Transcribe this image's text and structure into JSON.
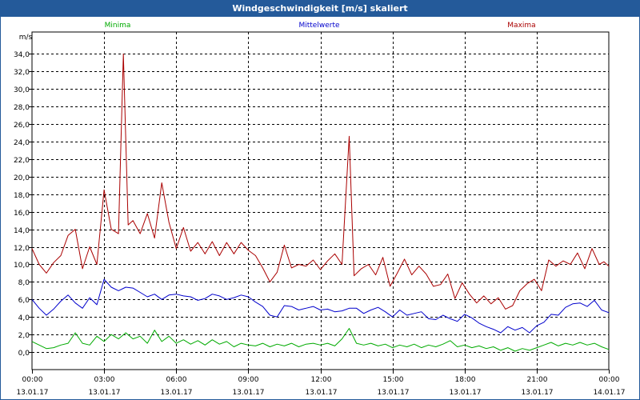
{
  "window": {
    "title": "Windgeschwindigkeit [m/s] skaliert"
  },
  "chart_data": {
    "type": "line",
    "title": "Windgeschwindigkeit [m/s] skaliert",
    "ylabel": "m/s",
    "xlabel": "",
    "ylim": [
      -2,
      36.5
    ],
    "yticks": [
      0,
      2,
      4,
      6,
      8,
      10,
      12,
      14,
      16,
      18,
      20,
      22,
      24,
      26,
      28,
      30,
      32,
      34
    ],
    "ytick_labels": [
      "0,0",
      "2,0",
      "4,0",
      "6,0",
      "8,0",
      "10,0",
      "12,0",
      "14,0",
      "16,0",
      "18,0",
      "20,0",
      "22,0",
      "24,0",
      "26,0",
      "28,0",
      "30,0",
      "32,0",
      "34,0"
    ],
    "xlim": [
      0,
      24
    ],
    "xticks": [
      0,
      3,
      6,
      9,
      12,
      15,
      18,
      21,
      24
    ],
    "xtick_time_labels": [
      "00:00",
      "03:00",
      "06:00",
      "09:00",
      "12:00",
      "15:00",
      "18:00",
      "21:00",
      "00:00"
    ],
    "xtick_date_labels": [
      "13.01.17",
      "13.01.17",
      "13.01.17",
      "13.01.17",
      "13.01.17",
      "13.01.17",
      "13.01.17",
      "13.01.17",
      "14.01.17"
    ],
    "grid": true,
    "legend_position": "top",
    "series": [
      {
        "name": "Minima",
        "color": "#00aa00",
        "points": [
          [
            0,
            1.2
          ],
          [
            0.3,
            0.8
          ],
          [
            0.6,
            0.4
          ],
          [
            0.9,
            0.5
          ],
          [
            1.2,
            0.8
          ],
          [
            1.5,
            1.0
          ],
          [
            1.8,
            2.2
          ],
          [
            2.1,
            1.0
          ],
          [
            2.4,
            0.8
          ],
          [
            2.7,
            1.8
          ],
          [
            3.0,
            1.2
          ],
          [
            3.3,
            2.0
          ],
          [
            3.6,
            1.5
          ],
          [
            3.9,
            2.2
          ],
          [
            4.2,
            1.5
          ],
          [
            4.5,
            1.8
          ],
          [
            4.8,
            1.0
          ],
          [
            5.1,
            2.5
          ],
          [
            5.4,
            1.2
          ],
          [
            5.7,
            1.8
          ],
          [
            6.0,
            1.0
          ],
          [
            6.3,
            1.4
          ],
          [
            6.6,
            0.9
          ],
          [
            6.9,
            1.3
          ],
          [
            7.2,
            0.8
          ],
          [
            7.5,
            1.4
          ],
          [
            7.8,
            0.9
          ],
          [
            8.1,
            1.2
          ],
          [
            8.4,
            0.6
          ],
          [
            8.7,
            1.0
          ],
          [
            9.0,
            0.8
          ],
          [
            9.3,
            0.7
          ],
          [
            9.6,
            1.0
          ],
          [
            9.9,
            0.6
          ],
          [
            10.2,
            0.9
          ],
          [
            10.5,
            0.7
          ],
          [
            10.8,
            1.0
          ],
          [
            11.1,
            0.6
          ],
          [
            11.4,
            0.9
          ],
          [
            11.7,
            1.0
          ],
          [
            12.0,
            0.8
          ],
          [
            12.3,
            1.0
          ],
          [
            12.6,
            0.7
          ],
          [
            12.9,
            1.5
          ],
          [
            13.2,
            2.7
          ],
          [
            13.5,
            1.0
          ],
          [
            13.8,
            0.8
          ],
          [
            14.1,
            1.0
          ],
          [
            14.4,
            0.7
          ],
          [
            14.7,
            0.9
          ],
          [
            15.0,
            0.5
          ],
          [
            15.3,
            0.8
          ],
          [
            15.6,
            0.6
          ],
          [
            15.9,
            0.9
          ],
          [
            16.2,
            0.5
          ],
          [
            16.5,
            0.8
          ],
          [
            16.8,
            0.6
          ],
          [
            17.1,
            0.9
          ],
          [
            17.4,
            1.3
          ],
          [
            17.7,
            0.6
          ],
          [
            18.0,
            0.8
          ],
          [
            18.3,
            0.5
          ],
          [
            18.6,
            0.7
          ],
          [
            18.9,
            0.4
          ],
          [
            19.2,
            0.6
          ],
          [
            19.5,
            0.2
          ],
          [
            19.8,
            0.5
          ],
          [
            20.1,
            0.1
          ],
          [
            20.4,
            0.4
          ],
          [
            20.7,
            0.2
          ],
          [
            21.0,
            0.5
          ],
          [
            21.3,
            0.8
          ],
          [
            21.6,
            1.1
          ],
          [
            21.9,
            0.7
          ],
          [
            22.2,
            1.0
          ],
          [
            22.5,
            0.8
          ],
          [
            22.8,
            1.1
          ],
          [
            23.1,
            0.8
          ],
          [
            23.4,
            1.0
          ],
          [
            23.7,
            0.6
          ],
          [
            24.0,
            0.3
          ]
        ]
      },
      {
        "name": "Mittelwerte",
        "color": "#0000cc",
        "points": [
          [
            0,
            6.0
          ],
          [
            0.3,
            5.0
          ],
          [
            0.6,
            4.2
          ],
          [
            0.9,
            4.9
          ],
          [
            1.2,
            5.8
          ],
          [
            1.5,
            6.5
          ],
          [
            1.8,
            5.6
          ],
          [
            2.1,
            5.0
          ],
          [
            2.4,
            6.2
          ],
          [
            2.7,
            5.4
          ],
          [
            3.0,
            8.3
          ],
          [
            3.3,
            7.4
          ],
          [
            3.6,
            7.0
          ],
          [
            3.9,
            7.4
          ],
          [
            4.2,
            7.3
          ],
          [
            4.5,
            6.8
          ],
          [
            4.8,
            6.3
          ],
          [
            5.1,
            6.6
          ],
          [
            5.4,
            6.0
          ],
          [
            5.7,
            6.5
          ],
          [
            6.0,
            6.6
          ],
          [
            6.3,
            6.4
          ],
          [
            6.6,
            6.3
          ],
          [
            6.9,
            5.9
          ],
          [
            7.2,
            6.1
          ],
          [
            7.5,
            6.6
          ],
          [
            7.8,
            6.4
          ],
          [
            8.1,
            6.0
          ],
          [
            8.4,
            6.2
          ],
          [
            8.7,
            6.5
          ],
          [
            9.0,
            6.3
          ],
          [
            9.3,
            5.7
          ],
          [
            9.6,
            5.2
          ],
          [
            9.9,
            4.2
          ],
          [
            10.2,
            4.0
          ],
          [
            10.5,
            5.3
          ],
          [
            10.8,
            5.2
          ],
          [
            11.1,
            4.8
          ],
          [
            11.4,
            5.0
          ],
          [
            11.7,
            5.2
          ],
          [
            12.0,
            4.8
          ],
          [
            12.3,
            4.9
          ],
          [
            12.6,
            4.6
          ],
          [
            12.9,
            4.7
          ],
          [
            13.2,
            5.0
          ],
          [
            13.5,
            5.0
          ],
          [
            13.8,
            4.4
          ],
          [
            14.1,
            4.8
          ],
          [
            14.4,
            5.1
          ],
          [
            14.7,
            4.6
          ],
          [
            15.0,
            4.0
          ],
          [
            15.3,
            4.8
          ],
          [
            15.6,
            4.2
          ],
          [
            15.9,
            4.4
          ],
          [
            16.2,
            4.6
          ],
          [
            16.5,
            3.8
          ],
          [
            16.8,
            3.7
          ],
          [
            17.1,
            4.2
          ],
          [
            17.4,
            3.8
          ],
          [
            17.7,
            3.5
          ],
          [
            18.0,
            4.3
          ],
          [
            18.3,
            3.9
          ],
          [
            18.6,
            3.3
          ],
          [
            18.9,
            2.9
          ],
          [
            19.2,
            2.6
          ],
          [
            19.5,
            2.2
          ],
          [
            19.8,
            2.9
          ],
          [
            20.1,
            2.5
          ],
          [
            20.4,
            2.8
          ],
          [
            20.7,
            2.2
          ],
          [
            21.0,
            3.0
          ],
          [
            21.3,
            3.4
          ],
          [
            21.6,
            4.3
          ],
          [
            21.9,
            4.2
          ],
          [
            22.2,
            5.1
          ],
          [
            22.5,
            5.5
          ],
          [
            22.8,
            5.6
          ],
          [
            23.1,
            5.2
          ],
          [
            23.4,
            5.9
          ],
          [
            23.7,
            4.8
          ],
          [
            24.0,
            4.5
          ]
        ]
      },
      {
        "name": "Maxima",
        "color": "#aa0000",
        "points": [
          [
            0,
            11.8
          ],
          [
            0.3,
            10.0
          ],
          [
            0.6,
            9.0
          ],
          [
            0.9,
            10.2
          ],
          [
            1.2,
            11.0
          ],
          [
            1.5,
            13.3
          ],
          [
            1.8,
            14.0
          ],
          [
            2.1,
            9.5
          ],
          [
            2.4,
            12.0
          ],
          [
            2.7,
            10.0
          ],
          [
            3.0,
            18.5
          ],
          [
            3.3,
            14.0
          ],
          [
            3.6,
            13.5
          ],
          [
            3.8,
            34.0
          ],
          [
            4.0,
            14.5
          ],
          [
            4.2,
            15.0
          ],
          [
            4.5,
            13.5
          ],
          [
            4.8,
            15.8
          ],
          [
            5.1,
            13.0
          ],
          [
            5.4,
            19.3
          ],
          [
            5.7,
            14.8
          ],
          [
            6.0,
            11.8
          ],
          [
            6.3,
            14.2
          ],
          [
            6.6,
            11.5
          ],
          [
            6.9,
            12.5
          ],
          [
            7.2,
            11.2
          ],
          [
            7.5,
            12.6
          ],
          [
            7.8,
            11.0
          ],
          [
            8.1,
            12.5
          ],
          [
            8.4,
            11.2
          ],
          [
            8.7,
            12.5
          ],
          [
            9.0,
            11.6
          ],
          [
            9.3,
            11.0
          ],
          [
            9.6,
            9.6
          ],
          [
            9.9,
            8.0
          ],
          [
            10.2,
            9.1
          ],
          [
            10.5,
            12.2
          ],
          [
            10.8,
            9.6
          ],
          [
            11.1,
            10.0
          ],
          [
            11.4,
            9.8
          ],
          [
            11.7,
            10.5
          ],
          [
            12.0,
            9.4
          ],
          [
            12.3,
            10.4
          ],
          [
            12.6,
            11.2
          ],
          [
            12.9,
            10.0
          ],
          [
            13.2,
            24.6
          ],
          [
            13.4,
            8.7
          ],
          [
            13.7,
            9.5
          ],
          [
            14.0,
            10.0
          ],
          [
            14.3,
            8.8
          ],
          [
            14.6,
            10.8
          ],
          [
            14.9,
            7.5
          ],
          [
            15.2,
            9.0
          ],
          [
            15.5,
            10.6
          ],
          [
            15.8,
            8.8
          ],
          [
            16.1,
            9.8
          ],
          [
            16.4,
            8.9
          ],
          [
            16.7,
            7.5
          ],
          [
            17.0,
            7.7
          ],
          [
            17.3,
            8.9
          ],
          [
            17.6,
            6.1
          ],
          [
            17.9,
            7.9
          ],
          [
            18.2,
            6.6
          ],
          [
            18.5,
            5.6
          ],
          [
            18.8,
            6.4
          ],
          [
            19.1,
            5.5
          ],
          [
            19.4,
            6.2
          ],
          [
            19.7,
            4.9
          ],
          [
            20.0,
            5.3
          ],
          [
            20.3,
            7.0
          ],
          [
            20.6,
            7.8
          ],
          [
            20.9,
            8.3
          ],
          [
            21.2,
            7.0
          ],
          [
            21.5,
            10.5
          ],
          [
            21.8,
            9.8
          ],
          [
            22.1,
            10.4
          ],
          [
            22.4,
            10.0
          ],
          [
            22.7,
            11.3
          ],
          [
            23.0,
            9.5
          ],
          [
            23.3,
            11.8
          ],
          [
            23.6,
            10.0
          ],
          [
            23.8,
            10.3
          ],
          [
            24.0,
            9.8
          ]
        ]
      }
    ]
  }
}
